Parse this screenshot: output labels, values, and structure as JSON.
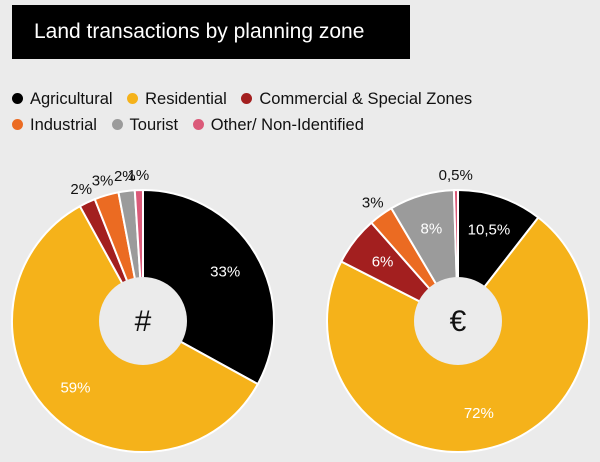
{
  "title": "Land transactions by planning zone",
  "legend": [
    {
      "label": "Agricultural",
      "color": "#000000"
    },
    {
      "label": "Residential",
      "color": "#F5B21A"
    },
    {
      "label": "Commercial & Special Zones",
      "color": "#A31F1F"
    },
    {
      "label": "Industrial",
      "color": "#EB6B22"
    },
    {
      "label": "Tourist",
      "color": "#9B9B9B"
    },
    {
      "label": "Other/ Non-Identified",
      "color": "#DB5A79"
    }
  ],
  "chart_data": [
    {
      "type": "pie",
      "center_label": "#",
      "categories": [
        "Agricultural",
        "Residential",
        "Commercial & Special Zones",
        "Industrial",
        "Tourist",
        "Other/ Non-Identified"
      ],
      "values": [
        33,
        59,
        2,
        3,
        2,
        1
      ],
      "value_labels": [
        "33%",
        "59%",
        "2%",
        "3%",
        "2%",
        "1%"
      ]
    },
    {
      "type": "pie",
      "center_label": "€",
      "categories": [
        "Agricultural",
        "Residential",
        "Commercial & Special Zones",
        "Industrial",
        "Tourist",
        "Other/ Non-Identified"
      ],
      "values": [
        10.5,
        72,
        6,
        3,
        8,
        0.5
      ],
      "value_labels": [
        "10,5%",
        "72%",
        "6%",
        "3%",
        "8%",
        "0,5%"
      ]
    }
  ]
}
